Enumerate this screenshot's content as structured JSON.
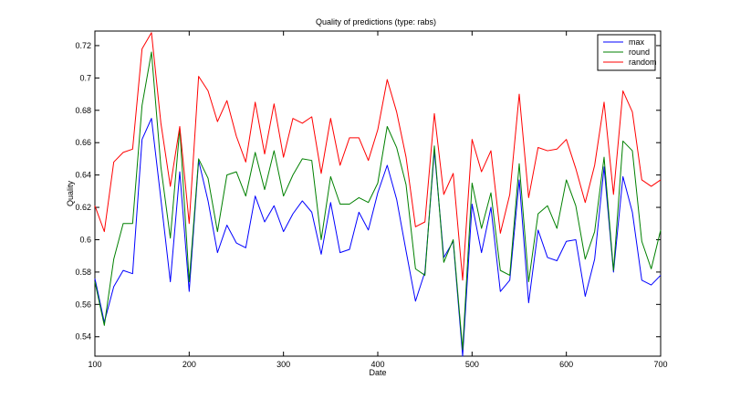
{
  "chart_data": {
    "type": "line",
    "title": "Quality of predictions (type: rabs)",
    "xlabel": "Date",
    "ylabel": "Quality",
    "xlim": [
      100,
      700
    ],
    "ylim": [
      0.528,
      0.729
    ],
    "xticks": [
      100,
      200,
      300,
      400,
      500,
      600,
      700
    ],
    "yticks": [
      0.54,
      0.56,
      0.58,
      0.6,
      0.62,
      0.64,
      0.66,
      0.68,
      0.7,
      0.72
    ],
    "legend_position": "top-right",
    "grid": false,
    "x": [
      100,
      110,
      120,
      130,
      140,
      150,
      160,
      170,
      180,
      190,
      200,
      210,
      220,
      230,
      240,
      250,
      260,
      270,
      280,
      290,
      300,
      310,
      320,
      330,
      340,
      350,
      360,
      370,
      380,
      390,
      400,
      410,
      420,
      430,
      440,
      450,
      460,
      470,
      480,
      490,
      500,
      510,
      520,
      530,
      540,
      550,
      560,
      570,
      580,
      590,
      600,
      610,
      620,
      630,
      640,
      650,
      660,
      670,
      680,
      690,
      700
    ],
    "series": [
      {
        "name": "max",
        "color": "#0000ff",
        "values": [
          0.576,
          0.549,
          0.571,
          0.581,
          0.579,
          0.662,
          0.675,
          0.625,
          0.574,
          0.642,
          0.568,
          0.649,
          0.624,
          0.592,
          0.609,
          0.598,
          0.595,
          0.627,
          0.611,
          0.621,
          0.605,
          0.616,
          0.624,
          0.617,
          0.591,
          0.623,
          0.592,
          0.594,
          0.617,
          0.606,
          0.629,
          0.646,
          0.625,
          0.593,
          0.562,
          0.58,
          0.655,
          0.589,
          0.599,
          0.528,
          0.622,
          0.592,
          0.62,
          0.568,
          0.575,
          0.637,
          0.561,
          0.606,
          0.589,
          0.587,
          0.599,
          0.6,
          0.565,
          0.588,
          0.645,
          0.58,
          0.639,
          0.617,
          0.575,
          0.572,
          0.578
        ]
      },
      {
        "name": "round",
        "color": "#008000",
        "values": [
          0.574,
          0.547,
          0.588,
          0.61,
          0.61,
          0.683,
          0.716,
          0.645,
          0.601,
          0.669,
          0.574,
          0.65,
          0.638,
          0.605,
          0.64,
          0.642,
          0.627,
          0.654,
          0.631,
          0.655,
          0.627,
          0.64,
          0.65,
          0.649,
          0.6,
          0.639,
          0.622,
          0.622,
          0.626,
          0.623,
          0.635,
          0.67,
          0.657,
          0.634,
          0.582,
          0.578,
          0.658,
          0.586,
          0.6,
          0.532,
          0.635,
          0.607,
          0.629,
          0.581,
          0.578,
          0.647,
          0.574,
          0.616,
          0.621,
          0.607,
          0.637,
          0.621,
          0.588,
          0.605,
          0.651,
          0.581,
          0.661,
          0.655,
          0.599,
          0.582,
          0.606
        ]
      },
      {
        "name": "random",
        "color": "#ff0000",
        "values": [
          0.621,
          0.605,
          0.648,
          0.654,
          0.656,
          0.718,
          0.728,
          0.672,
          0.633,
          0.67,
          0.61,
          0.701,
          0.692,
          0.673,
          0.686,
          0.664,
          0.648,
          0.685,
          0.653,
          0.684,
          0.651,
          0.675,
          0.672,
          0.676,
          0.641,
          0.675,
          0.646,
          0.663,
          0.663,
          0.649,
          0.668,
          0.699,
          0.679,
          0.651,
          0.608,
          0.611,
          0.678,
          0.628,
          0.641,
          0.575,
          0.662,
          0.642,
          0.655,
          0.604,
          0.628,
          0.69,
          0.626,
          0.657,
          0.655,
          0.656,
          0.662,
          0.644,
          0.623,
          0.646,
          0.685,
          0.628,
          0.692,
          0.679,
          0.637,
          0.633,
          0.637
        ]
      }
    ]
  }
}
